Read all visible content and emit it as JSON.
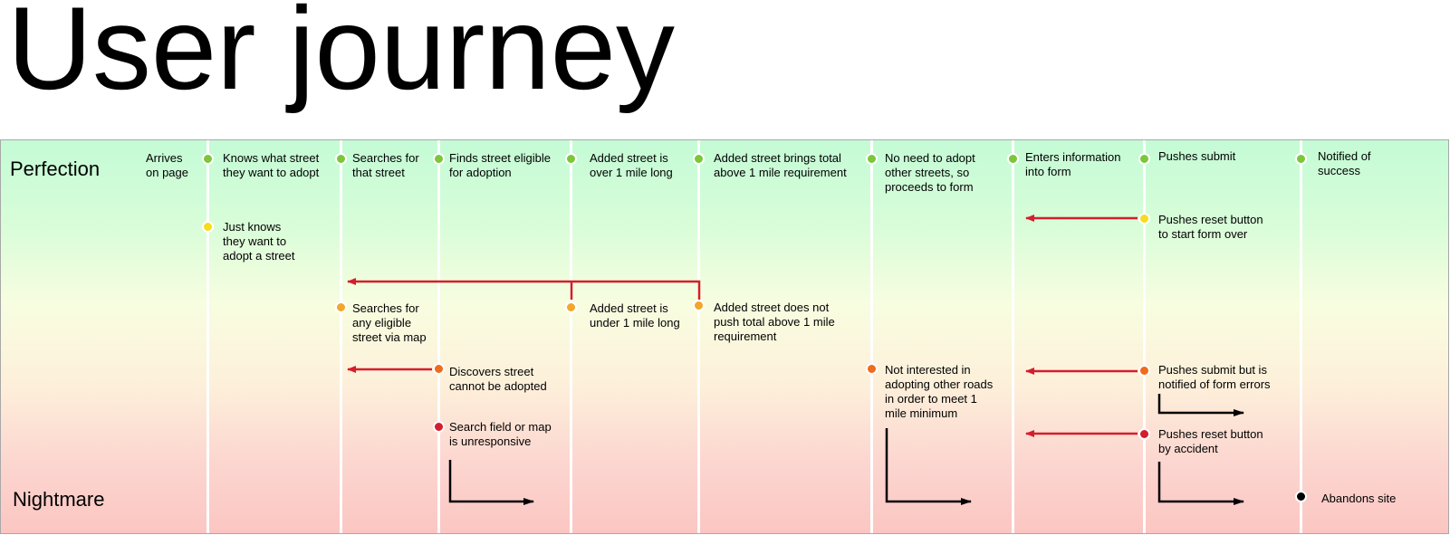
{
  "title": "User journey",
  "lanes": {
    "top": "Perfection",
    "bottom": "Nightmare"
  },
  "steps": [
    {
      "id": "arrives",
      "text": "Arrives\non page"
    },
    {
      "id": "knows",
      "text": "Knows what street\nthey want to adopt"
    },
    {
      "id": "searches",
      "text": "Searches for\nthat street"
    },
    {
      "id": "finds",
      "text": "Finds street eligible\nfor adoption"
    },
    {
      "id": "over",
      "text": "Added street is\nover 1 mile long"
    },
    {
      "id": "brings",
      "text": "Added street brings total\nabove 1 mile requirement"
    },
    {
      "id": "noneed",
      "text": "No need to adopt\nother streets, so\nproceeds to form"
    },
    {
      "id": "enters",
      "text": "Enters information\ninto form"
    },
    {
      "id": "pushes",
      "text": "Pushes submit"
    },
    {
      "id": "notified",
      "text": "Notified of\nsuccess"
    }
  ],
  "alternates": [
    {
      "id": "just-knows",
      "text": "Just knows\nthey want to\nadopt a street",
      "severity": "yellow"
    },
    {
      "id": "reset-over",
      "text": "Pushes reset button\nto start form over",
      "severity": "yellow"
    },
    {
      "id": "any-eligible",
      "text": "Searches for\nany eligible\nstreet via map",
      "severity": "amber"
    },
    {
      "id": "under",
      "text": "Added street is\nunder 1 mile long",
      "severity": "amber"
    },
    {
      "id": "not-push",
      "text": "Added street does not\npush total above 1 mile\nrequirement",
      "severity": "amber"
    },
    {
      "id": "cannot",
      "text": "Discovers street\ncannot be adopted",
      "severity": "orange"
    },
    {
      "id": "not-interested",
      "text": "Not interested in\nadopting other roads\nin order to meet 1\nmile minimum",
      "severity": "orange"
    },
    {
      "id": "form-errors",
      "text": "Pushes submit but is\nnotified of form errors",
      "severity": "orange"
    },
    {
      "id": "unresponsive",
      "text": "Search field or map\nis unresponsive",
      "severity": "red"
    },
    {
      "id": "reset-accident",
      "text": "Pushes reset button\nby accident",
      "severity": "red"
    },
    {
      "id": "abandons",
      "text": "Abandons site",
      "severity": "black"
    }
  ],
  "colors": {
    "green": "#7cc63a",
    "yellow": "#f5dd1e",
    "amber": "#f3a52c",
    "orange": "#f16a1d",
    "red": "#d41e2c",
    "black": "#000000",
    "arrow": "#d41e2c",
    "exit": "#000000"
  }
}
